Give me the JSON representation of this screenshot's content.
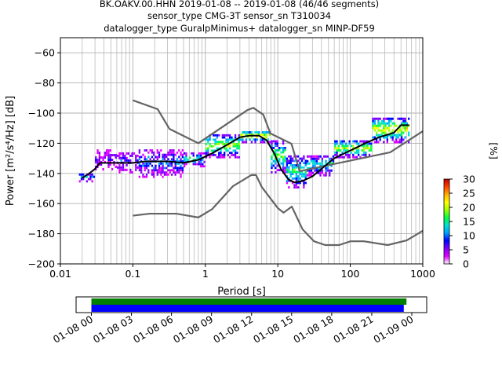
{
  "title": {
    "line1": "BK.OAKV.00.HHN   2019-01-08 -- 2019-01-08  (46/46 segments)",
    "line2": "sensor_type CMG-3T sensor_sn T310034",
    "line3": "datalogger_type GuralpMinimus+ datalogger_sn MINP-DF59"
  },
  "chart_data": {
    "type": "heatmap",
    "xlabel": "Period [s]",
    "ylabel": "Power [m²/s⁴/Hz] [dB]",
    "xscale": "log",
    "xlim": [
      0.01,
      1000
    ],
    "ylim": [
      -200,
      -50
    ],
    "x_ticks": [
      0.01,
      0.1,
      1,
      10,
      100,
      1000
    ],
    "x_tick_labels": [
      "0.01",
      "0.1",
      "1",
      "10",
      "100",
      "1000"
    ],
    "y_ticks": [
      -200,
      -180,
      -160,
      -140,
      -120,
      -100,
      -80,
      -60
    ],
    "y_tick_labels": [
      "−200",
      "−180",
      "−160",
      "−140",
      "−120",
      "−100",
      "−80",
      "−60"
    ],
    "grid": true,
    "colorbar": {
      "label": "[%]",
      "range": [
        0,
        30
      ],
      "ticks": [
        0,
        5,
        10,
        15,
        20,
        25,
        30
      ],
      "colormap": [
        "#ffffff",
        "#e000ff",
        "#7f00ff",
        "#0000ff",
        "#00a0ff",
        "#00e0d0",
        "#00ff40",
        "#a0ff00",
        "#ffff00",
        "#ffb000",
        "#ff4000",
        "#c00000"
      ]
    },
    "series": [
      {
        "role": "noise-model-high",
        "color": "#646464",
        "points": [
          [
            0.1,
            -91.5
          ],
          [
            0.22,
            -97.4
          ],
          [
            0.32,
            -110.5
          ],
          [
            0.8,
            -120
          ],
          [
            3.8,
            -98
          ],
          [
            4.6,
            -96.5
          ],
          [
            6.3,
            -101
          ],
          [
            7.9,
            -113.5
          ],
          [
            15.4,
            -120.3
          ],
          [
            20,
            -138.5
          ],
          [
            354.8,
            -126
          ],
          [
            1000,
            -112
          ]
        ]
      },
      {
        "role": "noise-model-low",
        "color": "#646464",
        "points": [
          [
            0.1,
            -168
          ],
          [
            0.17,
            -166.7
          ],
          [
            0.4,
            -166.7
          ],
          [
            0.8,
            -169.2
          ],
          [
            1.24,
            -163.7
          ],
          [
            2.4,
            -148.5
          ],
          [
            4.3,
            -141.1
          ],
          [
            5,
            -141.1
          ],
          [
            6,
            -149
          ],
          [
            10,
            -163
          ],
          [
            12,
            -166
          ],
          [
            15.6,
            -162
          ],
          [
            21.9,
            -177
          ],
          [
            31.6,
            -185
          ],
          [
            45,
            -187.5
          ],
          [
            70,
            -187.5
          ],
          [
            101,
            -185
          ],
          [
            154,
            -185
          ],
          [
            328,
            -187.5
          ],
          [
            600,
            -184.4
          ],
          [
            1000,
            -178
          ]
        ]
      },
      {
        "role": "mean-psd",
        "color": "#000000",
        "points": [
          [
            0.02,
            -143
          ],
          [
            0.025,
            -140
          ],
          [
            0.03,
            -137
          ],
          [
            0.035,
            -133
          ],
          [
            0.05,
            -133
          ],
          [
            0.1,
            -133
          ],
          [
            0.15,
            -132
          ],
          [
            0.3,
            -132
          ],
          [
            0.5,
            -133
          ],
          [
            0.8,
            -131
          ],
          [
            1.2,
            -127
          ],
          [
            2,
            -121
          ],
          [
            3,
            -116
          ],
          [
            4,
            -115
          ],
          [
            5.5,
            -115
          ],
          [
            7,
            -118
          ],
          [
            9,
            -127
          ],
          [
            11,
            -137
          ],
          [
            14,
            -144
          ],
          [
            17,
            -146
          ],
          [
            22,
            -145
          ],
          [
            30,
            -142
          ],
          [
            40,
            -137
          ],
          [
            60,
            -130
          ],
          [
            80,
            -127
          ],
          [
            120,
            -123
          ],
          [
            160,
            -120
          ],
          [
            250,
            -116
          ],
          [
            400,
            -113
          ],
          [
            500,
            -108
          ],
          [
            650,
            -108
          ]
        ]
      }
    ],
    "histogram_bands": [
      {
        "x": [
          0.018,
          0.03
        ],
        "ylow": -146,
        "yhigh": -140,
        "level": 12
      },
      {
        "x": [
          0.03,
          0.06
        ],
        "ylow": -138,
        "yhigh": -124,
        "level": 6
      },
      {
        "x": [
          0.06,
          0.12
        ],
        "ylow": -140,
        "yhigh": -126,
        "level": 8
      },
      {
        "x": [
          0.12,
          0.5
        ],
        "ylow": -143,
        "yhigh": -124,
        "level": 10
      },
      {
        "x": [
          0.5,
          1.0
        ],
        "ylow": -136,
        "yhigh": -126,
        "level": 14
      },
      {
        "x": [
          1.0,
          3.0
        ],
        "ylow": -130,
        "yhigh": -114,
        "level": 20
      },
      {
        "x": [
          3.0,
          8.0
        ],
        "ylow": -120,
        "yhigh": -112,
        "level": 24
      },
      {
        "x": [
          8.0,
          13.0
        ],
        "ylow": -140,
        "yhigh": -118,
        "level": 18
      },
      {
        "x": [
          13.0,
          25.0
        ],
        "ylow": -150,
        "yhigh": -128,
        "level": 16
      },
      {
        "x": [
          25.0,
          60.0
        ],
        "ylow": -142,
        "yhigh": -128,
        "level": 14
      },
      {
        "x": [
          60.0,
          200.0
        ],
        "ylow": -130,
        "yhigh": -118,
        "level": 20
      },
      {
        "x": [
          200.0,
          660.0
        ],
        "ylow": -120,
        "yhigh": -103,
        "level": 22
      }
    ]
  },
  "timeline": {
    "tick_labels": [
      "01-08 00",
      "01-08 03",
      "01-08 06",
      "01-08 09",
      "01-08 12",
      "01-08 15",
      "01-08 18",
      "01-08 21",
      "01-09 00"
    ],
    "green_color": "#008000",
    "blue_color": "#0000ff",
    "green_end_hours": 23.6,
    "blue_end_hours": 23.4
  }
}
